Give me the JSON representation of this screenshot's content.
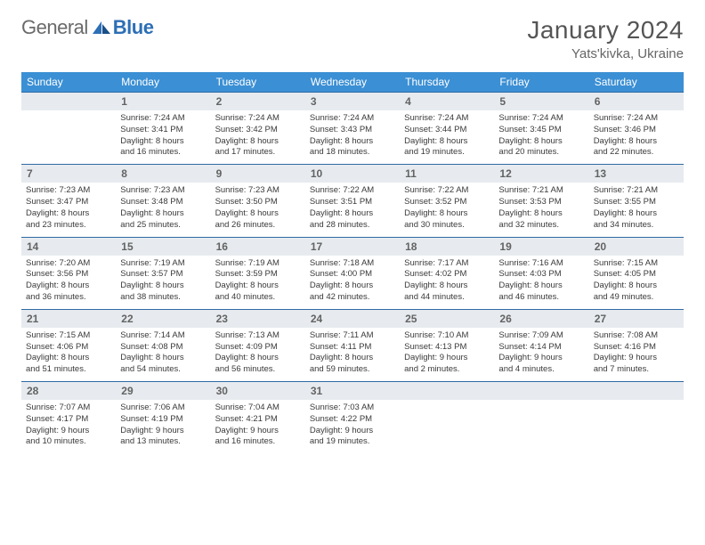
{
  "brand": {
    "part1": "General",
    "part2": "Blue"
  },
  "title": "January 2024",
  "subtitle": "Yats'kivka, Ukraine",
  "dow": [
    "Sunday",
    "Monday",
    "Tuesday",
    "Wednesday",
    "Thursday",
    "Friday",
    "Saturday"
  ],
  "colors": {
    "header_bg": "#3b8fd4",
    "daynum_bg": "#e7ebef",
    "rule": "#2f6aa3",
    "logo_accent": "#2d6fb5"
  },
  "weeks": [
    [
      {
        "n": "",
        "lines": []
      },
      {
        "n": "1",
        "lines": [
          "Sunrise: 7:24 AM",
          "Sunset: 3:41 PM",
          "Daylight: 8 hours",
          "and 16 minutes."
        ]
      },
      {
        "n": "2",
        "lines": [
          "Sunrise: 7:24 AM",
          "Sunset: 3:42 PM",
          "Daylight: 8 hours",
          "and 17 minutes."
        ]
      },
      {
        "n": "3",
        "lines": [
          "Sunrise: 7:24 AM",
          "Sunset: 3:43 PM",
          "Daylight: 8 hours",
          "and 18 minutes."
        ]
      },
      {
        "n": "4",
        "lines": [
          "Sunrise: 7:24 AM",
          "Sunset: 3:44 PM",
          "Daylight: 8 hours",
          "and 19 minutes."
        ]
      },
      {
        "n": "5",
        "lines": [
          "Sunrise: 7:24 AM",
          "Sunset: 3:45 PM",
          "Daylight: 8 hours",
          "and 20 minutes."
        ]
      },
      {
        "n": "6",
        "lines": [
          "Sunrise: 7:24 AM",
          "Sunset: 3:46 PM",
          "Daylight: 8 hours",
          "and 22 minutes."
        ]
      }
    ],
    [
      {
        "n": "7",
        "lines": [
          "Sunrise: 7:23 AM",
          "Sunset: 3:47 PM",
          "Daylight: 8 hours",
          "and 23 minutes."
        ]
      },
      {
        "n": "8",
        "lines": [
          "Sunrise: 7:23 AM",
          "Sunset: 3:48 PM",
          "Daylight: 8 hours",
          "and 25 minutes."
        ]
      },
      {
        "n": "9",
        "lines": [
          "Sunrise: 7:23 AM",
          "Sunset: 3:50 PM",
          "Daylight: 8 hours",
          "and 26 minutes."
        ]
      },
      {
        "n": "10",
        "lines": [
          "Sunrise: 7:22 AM",
          "Sunset: 3:51 PM",
          "Daylight: 8 hours",
          "and 28 minutes."
        ]
      },
      {
        "n": "11",
        "lines": [
          "Sunrise: 7:22 AM",
          "Sunset: 3:52 PM",
          "Daylight: 8 hours",
          "and 30 minutes."
        ]
      },
      {
        "n": "12",
        "lines": [
          "Sunrise: 7:21 AM",
          "Sunset: 3:53 PM",
          "Daylight: 8 hours",
          "and 32 minutes."
        ]
      },
      {
        "n": "13",
        "lines": [
          "Sunrise: 7:21 AM",
          "Sunset: 3:55 PM",
          "Daylight: 8 hours",
          "and 34 minutes."
        ]
      }
    ],
    [
      {
        "n": "14",
        "lines": [
          "Sunrise: 7:20 AM",
          "Sunset: 3:56 PM",
          "Daylight: 8 hours",
          "and 36 minutes."
        ]
      },
      {
        "n": "15",
        "lines": [
          "Sunrise: 7:19 AM",
          "Sunset: 3:57 PM",
          "Daylight: 8 hours",
          "and 38 minutes."
        ]
      },
      {
        "n": "16",
        "lines": [
          "Sunrise: 7:19 AM",
          "Sunset: 3:59 PM",
          "Daylight: 8 hours",
          "and 40 minutes."
        ]
      },
      {
        "n": "17",
        "lines": [
          "Sunrise: 7:18 AM",
          "Sunset: 4:00 PM",
          "Daylight: 8 hours",
          "and 42 minutes."
        ]
      },
      {
        "n": "18",
        "lines": [
          "Sunrise: 7:17 AM",
          "Sunset: 4:02 PM",
          "Daylight: 8 hours",
          "and 44 minutes."
        ]
      },
      {
        "n": "19",
        "lines": [
          "Sunrise: 7:16 AM",
          "Sunset: 4:03 PM",
          "Daylight: 8 hours",
          "and 46 minutes."
        ]
      },
      {
        "n": "20",
        "lines": [
          "Sunrise: 7:15 AM",
          "Sunset: 4:05 PM",
          "Daylight: 8 hours",
          "and 49 minutes."
        ]
      }
    ],
    [
      {
        "n": "21",
        "lines": [
          "Sunrise: 7:15 AM",
          "Sunset: 4:06 PM",
          "Daylight: 8 hours",
          "and 51 minutes."
        ]
      },
      {
        "n": "22",
        "lines": [
          "Sunrise: 7:14 AM",
          "Sunset: 4:08 PM",
          "Daylight: 8 hours",
          "and 54 minutes."
        ]
      },
      {
        "n": "23",
        "lines": [
          "Sunrise: 7:13 AM",
          "Sunset: 4:09 PM",
          "Daylight: 8 hours",
          "and 56 minutes."
        ]
      },
      {
        "n": "24",
        "lines": [
          "Sunrise: 7:11 AM",
          "Sunset: 4:11 PM",
          "Daylight: 8 hours",
          "and 59 minutes."
        ]
      },
      {
        "n": "25",
        "lines": [
          "Sunrise: 7:10 AM",
          "Sunset: 4:13 PM",
          "Daylight: 9 hours",
          "and 2 minutes."
        ]
      },
      {
        "n": "26",
        "lines": [
          "Sunrise: 7:09 AM",
          "Sunset: 4:14 PM",
          "Daylight: 9 hours",
          "and 4 minutes."
        ]
      },
      {
        "n": "27",
        "lines": [
          "Sunrise: 7:08 AM",
          "Sunset: 4:16 PM",
          "Daylight: 9 hours",
          "and 7 minutes."
        ]
      }
    ],
    [
      {
        "n": "28",
        "lines": [
          "Sunrise: 7:07 AM",
          "Sunset: 4:17 PM",
          "Daylight: 9 hours",
          "and 10 minutes."
        ]
      },
      {
        "n": "29",
        "lines": [
          "Sunrise: 7:06 AM",
          "Sunset: 4:19 PM",
          "Daylight: 9 hours",
          "and 13 minutes."
        ]
      },
      {
        "n": "30",
        "lines": [
          "Sunrise: 7:04 AM",
          "Sunset: 4:21 PM",
          "Daylight: 9 hours",
          "and 16 minutes."
        ]
      },
      {
        "n": "31",
        "lines": [
          "Sunrise: 7:03 AM",
          "Sunset: 4:22 PM",
          "Daylight: 9 hours",
          "and 19 minutes."
        ]
      },
      {
        "n": "",
        "lines": []
      },
      {
        "n": "",
        "lines": []
      },
      {
        "n": "",
        "lines": []
      }
    ]
  ]
}
